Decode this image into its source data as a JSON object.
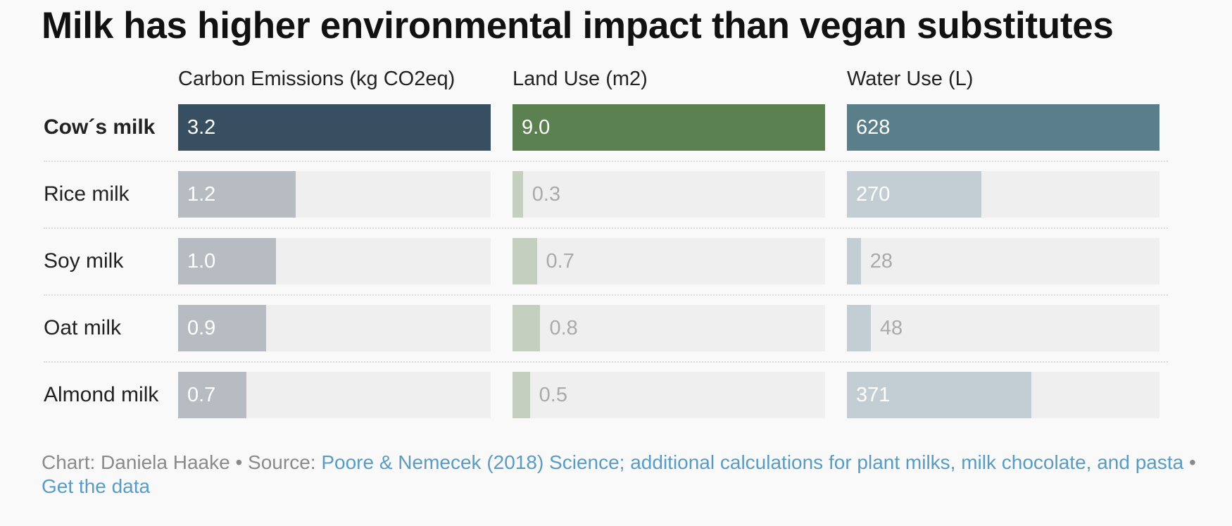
{
  "title": "Milk has higher environmental impact than vegan substitutes",
  "columns": [
    "Carbon Emissions (kg CO2eq)",
    "Land Use (m2)",
    "Water Use (L)"
  ],
  "colors": {
    "highlight": [
      "#374f60",
      "#5a814f",
      "#5a7f8a"
    ],
    "muted": [
      "#b6bcc2",
      "#c4cfbf",
      "#c2ced3"
    ],
    "track": "#efefef",
    "muted_text": "#ffffff",
    "outside_text": "#aaaaaa"
  },
  "chart_data": {
    "type": "bar",
    "title": "Milk has higher environmental impact than vegan substitutes",
    "categories": [
      "Cow´s milk",
      "Rice milk",
      "Soy milk",
      "Oat milk",
      "Almond milk"
    ],
    "highlight_category": "Cow´s milk",
    "series": [
      {
        "name": "Carbon Emissions (kg CO2eq)",
        "values": [
          3.2,
          1.2,
          1.0,
          0.9,
          0.7
        ],
        "labels": [
          "3.2",
          "1.2",
          "1.0",
          "0.9",
          "0.7"
        ],
        "max": 3.2
      },
      {
        "name": "Land Use (m2)",
        "values": [
          9.0,
          0.3,
          0.7,
          0.8,
          0.5
        ],
        "labels": [
          "9.0",
          "0.3",
          "0.7",
          "0.8",
          "0.5"
        ],
        "max": 9.0
      },
      {
        "name": "Water Use (L)",
        "values": [
          628,
          270,
          28,
          48,
          371
        ],
        "labels": [
          "628",
          "270",
          "28",
          "48",
          "371"
        ],
        "max": 628
      }
    ]
  },
  "footer": {
    "prefix": "Chart: Daniela Haake • Source: ",
    "source_link": "Poore & Nemecek (2018) Science; additional calculations for plant milks, milk chocolate, and pasta",
    "separator": " •",
    "data_link": "Get the data"
  }
}
